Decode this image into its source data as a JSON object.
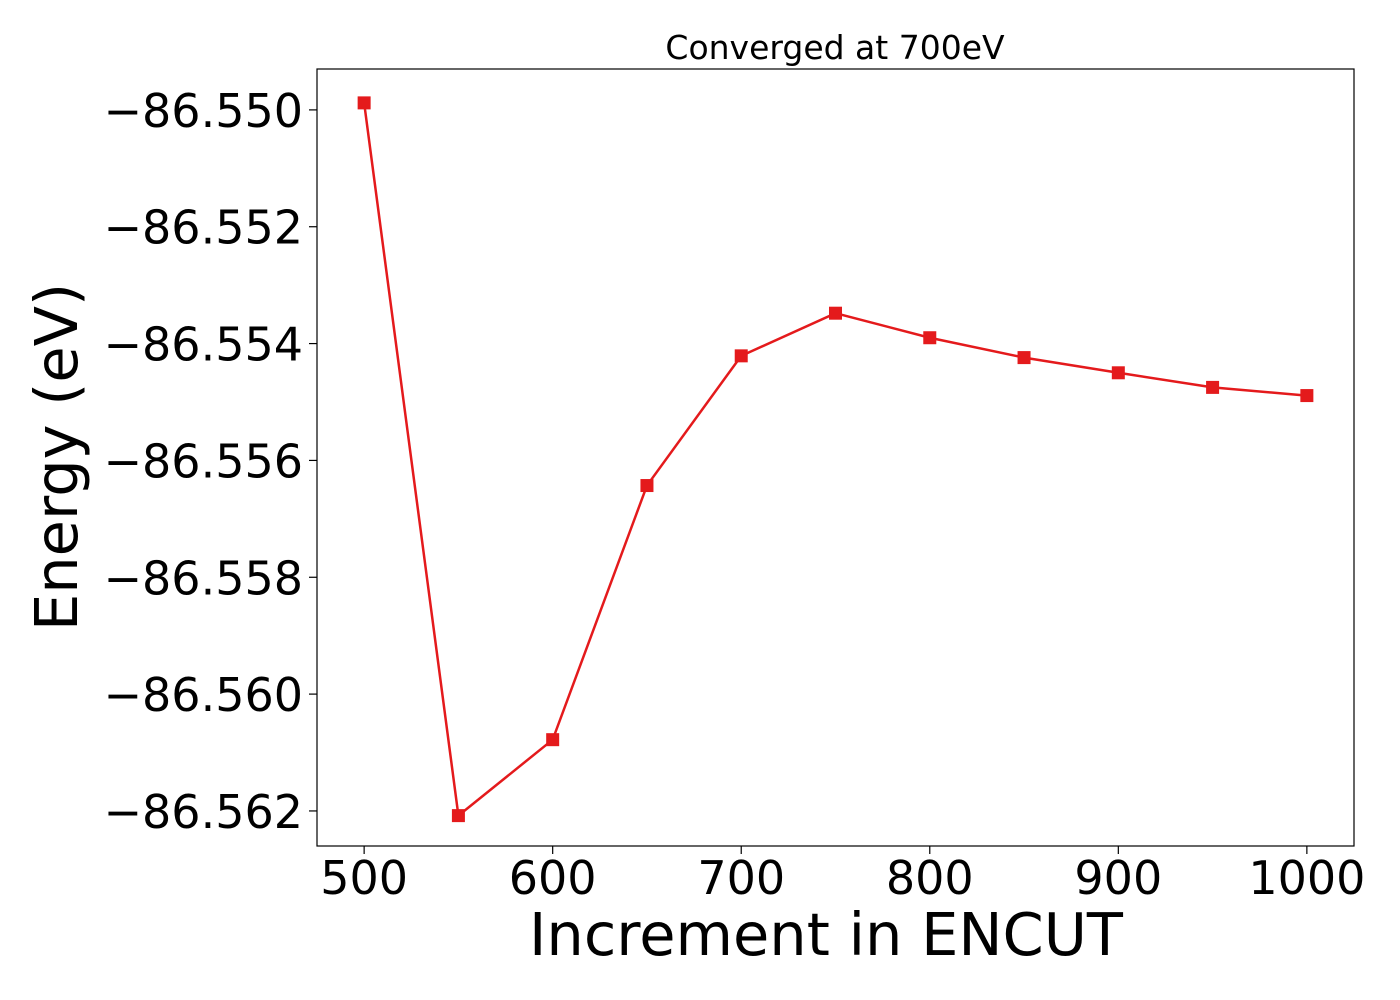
{
  "chart_data": {
    "type": "line",
    "title": "Converged at 700eV",
    "xlabel": "Increment in ENCUT",
    "ylabel": "Energy (eV)",
    "x": [
      500,
      550,
      600,
      650,
      700,
      750,
      800,
      850,
      900,
      950,
      1000
    ],
    "series": [
      {
        "color": "#e41a1c",
        "marker": "square",
        "values": [
          -86.54988,
          -86.56208,
          -86.56078,
          -86.55643,
          -86.55421,
          -86.55348,
          -86.5539,
          -86.55424,
          -86.5545,
          -86.55475,
          -86.55489
        ]
      }
    ],
    "xlim": [
      475,
      1025
    ],
    "ylim": [
      -86.5626,
      -86.5493
    ],
    "xticks": [
      500,
      600,
      700,
      800,
      900,
      1000
    ],
    "xtick_labels": [
      "500",
      "600",
      "700",
      "800",
      "900",
      "1000"
    ],
    "yticks": [
      -86.55,
      -86.552,
      -86.554,
      -86.556,
      -86.558,
      -86.56,
      -86.562
    ],
    "ytick_labels": [
      "−86.550",
      "−86.552",
      "−86.554",
      "−86.556",
      "−86.558",
      "−86.560",
      "−86.562"
    ],
    "grid": false,
    "legend": "none"
  }
}
